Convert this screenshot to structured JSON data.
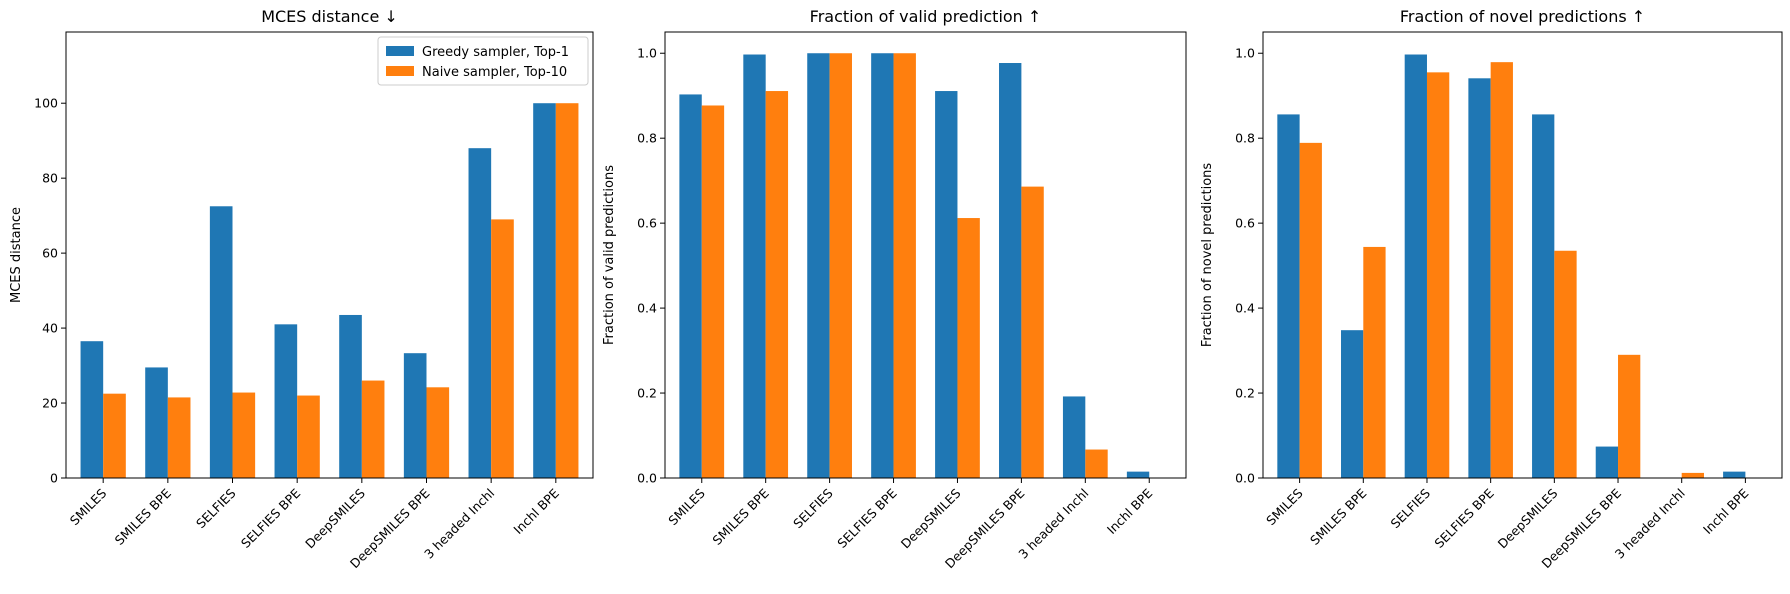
{
  "chart_data": [
    {
      "type": "bar",
      "title": "MCES distance ↓",
      "xlabel": "",
      "ylabel": "MCES distance",
      "ylim": [
        0,
        119
      ],
      "yticks": [
        "0",
        "20",
        "40",
        "60",
        "80",
        "100"
      ],
      "categories": [
        "SMILES",
        "SMILES BPE",
        "SELFIES",
        "SELFIES BPE",
        "DeepSMILES",
        "DeepSMILES BPE",
        "3 headed Inchl",
        "Inchl BPE"
      ],
      "series": [
        {
          "name": "Greedy sampler, Top-1",
          "color": "#1f77b4",
          "values": [
            36.5,
            29.5,
            72.5,
            41.0,
            43.5,
            33.3,
            88.0,
            100.0
          ]
        },
        {
          "name": "Naive sampler, Top-10",
          "color": "#ff7f0e",
          "values": [
            22.5,
            21.5,
            22.8,
            22.0,
            26.0,
            24.2,
            69.0,
            100.0
          ]
        }
      ],
      "legend": "top-right",
      "grid": false
    },
    {
      "type": "bar",
      "title": "Fraction of valid prediction ↑",
      "xlabel": "",
      "ylabel": "Fraction of valid predictions",
      "ylim": [
        0,
        1.05
      ],
      "yticks": [
        "0.0",
        "0.2",
        "0.4",
        "0.6",
        "0.8",
        "1.0"
      ],
      "categories": [
        "SMILES",
        "SMILES BPE",
        "SELFIES",
        "SELFIES BPE",
        "DeepSMILES",
        "DeepSMILES BPE",
        "3 headed Inchl",
        "Inchl BPE"
      ],
      "series": [
        {
          "color": "#1f77b4",
          "values": [
            0.903,
            0.997,
            1.0,
            1.0,
            0.911,
            0.977,
            0.192,
            0.015
          ]
        },
        {
          "color": "#ff7f0e",
          "values": [
            0.877,
            0.911,
            1.0,
            1.0,
            0.612,
            0.686,
            0.067,
            0.0
          ]
        }
      ],
      "grid": false
    },
    {
      "type": "bar",
      "title": "Fraction of novel predictions ↑",
      "xlabel": "",
      "ylabel": "Fraction of novel predictions",
      "ylim": [
        0,
        1.05
      ],
      "yticks": [
        "0.0",
        "0.2",
        "0.4",
        "0.6",
        "0.8",
        "1.0"
      ],
      "categories": [
        "SMILES",
        "SMILES BPE",
        "SELFIES",
        "SELFIES BPE",
        "DeepSMILES",
        "DeepSMILES BPE",
        "3 headed Inchl",
        "Inchl BPE"
      ],
      "series": [
        {
          "color": "#1f77b4",
          "values": [
            0.856,
            0.348,
            0.997,
            0.941,
            0.856,
            0.074,
            0.0,
            0.015
          ]
        },
        {
          "color": "#ff7f0e",
          "values": [
            0.789,
            0.544,
            0.955,
            0.979,
            0.535,
            0.29,
            0.012,
            0.0
          ]
        }
      ],
      "grid": false
    }
  ]
}
